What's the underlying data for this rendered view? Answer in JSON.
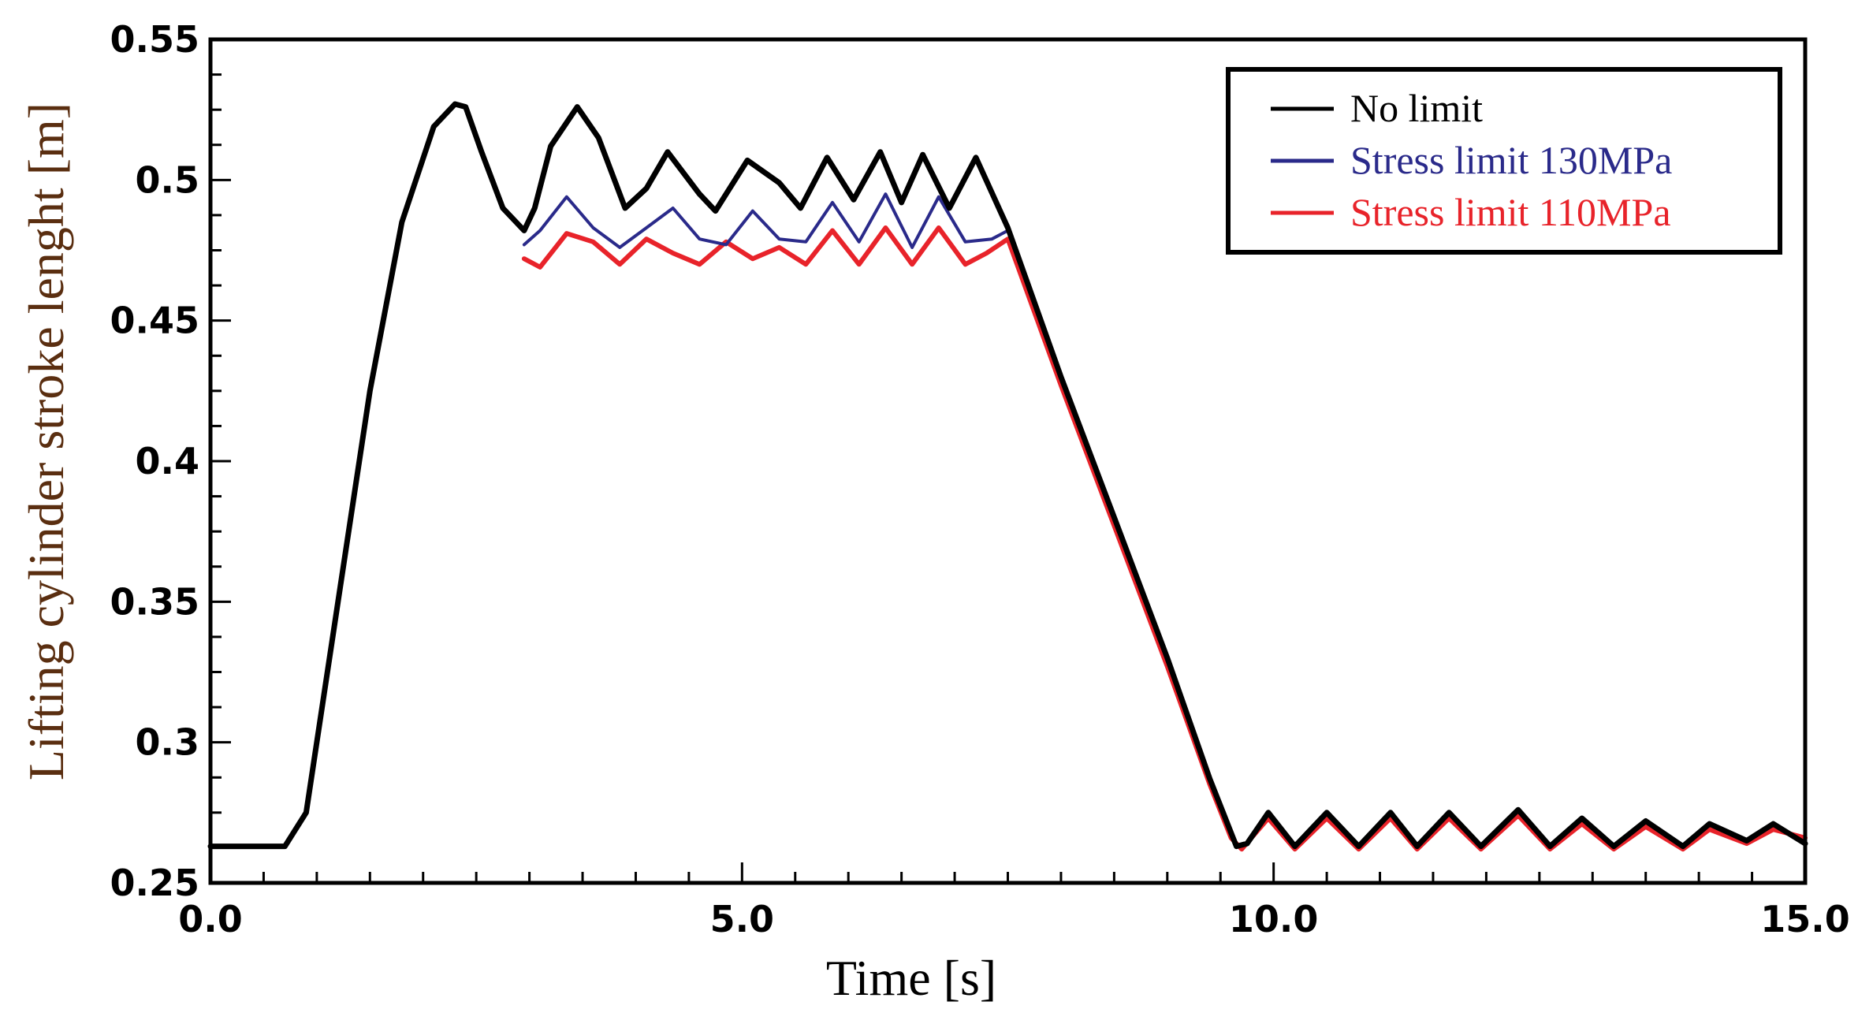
{
  "chart_data": {
    "type": "line",
    "title": "",
    "xlabel": "Time [s]",
    "ylabel": "Lifting cylinder stroke lenght [m]",
    "xlim": [
      0,
      15
    ],
    "ylim": [
      0.25,
      0.55
    ],
    "xticks": [
      0,
      5,
      10,
      15
    ],
    "xtick_labels": [
      "0.0",
      "5.0",
      "10.0",
      "15.0"
    ],
    "yticks": [
      0.25,
      0.3,
      0.35,
      0.4,
      0.45,
      0.5,
      0.55
    ],
    "ytick_labels": [
      "0.25",
      "0.3",
      "0.35",
      "0.4",
      "0.45",
      "0.5",
      "0.55"
    ],
    "grid": false,
    "legend_position": "top-right",
    "series": [
      {
        "name": "No limit",
        "color": "#000000",
        "x": [
          0,
          0.4,
          0.7,
          0.9,
          1.2,
          1.5,
          1.8,
          2.1,
          2.3,
          2.4,
          2.55,
          2.75,
          2.95,
          3.05,
          3.2,
          3.45,
          3.65,
          3.9,
          4.1,
          4.3,
          4.6,
          4.75,
          5.05,
          5.35,
          5.55,
          5.8,
          6.05,
          6.3,
          6.5,
          6.7,
          6.95,
          7.2,
          7.5,
          8.0,
          8.5,
          9.0,
          9.4,
          9.65,
          9.75,
          9.95,
          10.2,
          10.5,
          10.8,
          11.1,
          11.35,
          11.65,
          11.95,
          12.3,
          12.6,
          12.9,
          13.2,
          13.5,
          13.85,
          14.1,
          14.45,
          14.7,
          15.0
        ],
        "y": [
          0.263,
          0.263,
          0.263,
          0.275,
          0.35,
          0.425,
          0.485,
          0.519,
          0.527,
          0.526,
          0.51,
          0.49,
          0.482,
          0.49,
          0.512,
          0.526,
          0.515,
          0.49,
          0.497,
          0.51,
          0.495,
          0.489,
          0.507,
          0.499,
          0.49,
          0.508,
          0.493,
          0.51,
          0.492,
          0.509,
          0.49,
          0.508,
          0.483,
          0.43,
          0.38,
          0.33,
          0.287,
          0.263,
          0.264,
          0.275,
          0.263,
          0.275,
          0.263,
          0.275,
          0.263,
          0.275,
          0.263,
          0.276,
          0.263,
          0.273,
          0.263,
          0.272,
          0.263,
          0.271,
          0.265,
          0.271,
          0.264
        ]
      },
      {
        "name": "Stress limit 130MPa",
        "color": "#2a2a8a",
        "x": [
          2.95,
          3.1,
          3.35,
          3.6,
          3.85,
          4.1,
          4.35,
          4.6,
          4.85,
          5.1,
          5.35,
          5.6,
          5.85,
          6.1,
          6.35,
          6.6,
          6.85,
          7.1,
          7.35,
          7.5
        ],
        "y": [
          0.477,
          0.482,
          0.494,
          0.483,
          0.476,
          0.483,
          0.49,
          0.479,
          0.477,
          0.489,
          0.479,
          0.478,
          0.492,
          0.478,
          0.495,
          0.476,
          0.494,
          0.478,
          0.479,
          0.482
        ]
      },
      {
        "name": "Stress limit 110MPa",
        "color": "#e8232a",
        "x": [
          2.95,
          3.1,
          3.35,
          3.6,
          3.85,
          4.1,
          4.35,
          4.6,
          4.85,
          5.1,
          5.35,
          5.6,
          5.85,
          6.1,
          6.35,
          6.6,
          6.85,
          7.1,
          7.3,
          7.5,
          8.0,
          8.5,
          9.0,
          9.4,
          9.6,
          9.7,
          9.95,
          10.2,
          10.5,
          10.8,
          11.1,
          11.35,
          11.65,
          11.95,
          12.3,
          12.6,
          12.9,
          13.2,
          13.5,
          13.85,
          14.1,
          14.45,
          14.7,
          15.0
        ],
        "y": [
          0.472,
          0.469,
          0.481,
          0.478,
          0.47,
          0.479,
          0.474,
          0.47,
          0.478,
          0.472,
          0.476,
          0.47,
          0.482,
          0.47,
          0.483,
          0.47,
          0.483,
          0.47,
          0.474,
          0.479,
          0.427,
          0.377,
          0.327,
          0.285,
          0.266,
          0.262,
          0.273,
          0.262,
          0.273,
          0.262,
          0.273,
          0.262,
          0.273,
          0.262,
          0.274,
          0.262,
          0.271,
          0.262,
          0.27,
          0.262,
          0.269,
          0.264,
          0.269,
          0.266
        ]
      }
    ]
  }
}
